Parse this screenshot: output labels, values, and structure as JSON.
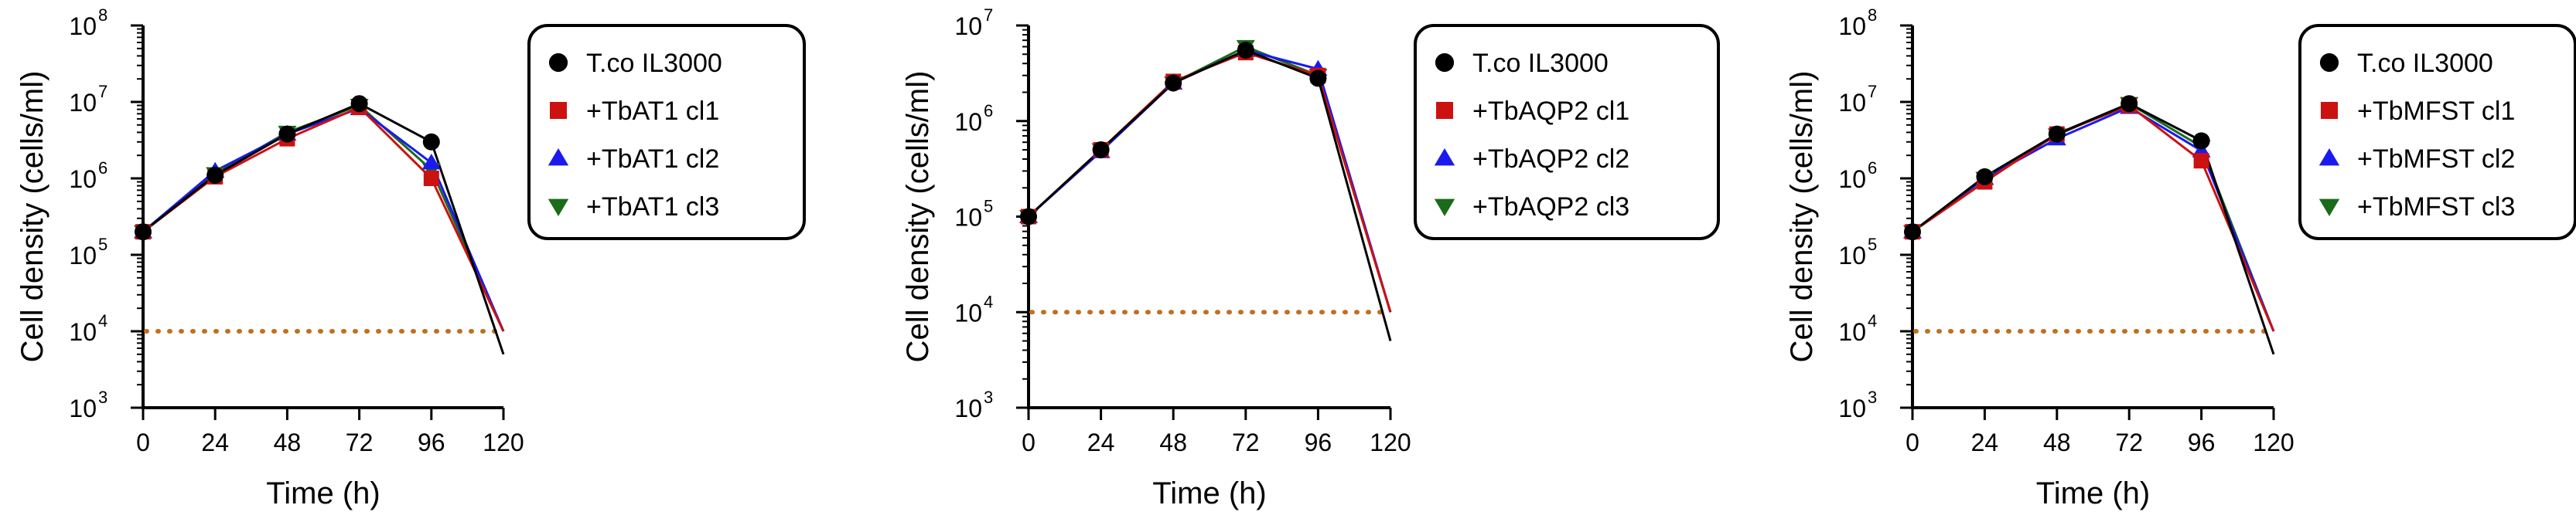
{
  "chart_data": [
    {
      "type": "line",
      "yscale": "log10",
      "xlabel": "Time (h)",
      "ylabel": "Cell density (cells/ml)",
      "xticks": [
        0,
        24,
        48,
        72,
        96,
        120
      ],
      "ytick_exponents": [
        3,
        4,
        5,
        6,
        7,
        8
      ],
      "ytick_base": "10",
      "xlim": [
        0,
        120
      ],
      "ylim": [
        1000,
        100000000
      ],
      "threshold": {
        "value": 10000,
        "style": "dotted",
        "color": "#c07020"
      },
      "series": [
        {
          "name": "T.co IL3000",
          "marker": "circle",
          "color": "#000000",
          "x": [
            0,
            24,
            48,
            72,
            96,
            120
          ],
          "y": [
            200000,
            1100000,
            3800000,
            9500000,
            3000000,
            5000
          ]
        },
        {
          "name": "+TbAT1 cl1",
          "marker": "square",
          "color": "#cc1111",
          "x": [
            0,
            24,
            48,
            72,
            96,
            120
          ],
          "y": [
            200000,
            1050000,
            3300000,
            8500000,
            1000000,
            10000
          ]
        },
        {
          "name": "+TbAT1 cl2",
          "marker": "triangle-up",
          "color": "#1a1aee",
          "x": [
            0,
            24,
            48,
            72,
            96,
            120
          ],
          "y": [
            200000,
            1250000,
            3800000,
            8200000,
            1600000,
            10000
          ]
        },
        {
          "name": "+TbAT1 cl3",
          "marker": "triangle-down",
          "color": "#1a6b1a",
          "x": [
            0,
            24,
            48,
            72,
            96,
            120
          ],
          "y": [
            200000,
            1150000,
            4000000,
            9000000,
            1300000,
            10000
          ]
        }
      ]
    },
    {
      "type": "line",
      "yscale": "log10",
      "xlabel": "Time (h)",
      "ylabel": "Cell density (cells/ml)",
      "xticks": [
        0,
        24,
        48,
        72,
        96,
        120
      ],
      "ytick_exponents": [
        3,
        4,
        5,
        6,
        7
      ],
      "ytick_base": "10",
      "xlim": [
        0,
        120
      ],
      "ylim": [
        1000,
        10000000
      ],
      "threshold": {
        "value": 10000,
        "style": "dotted",
        "color": "#c07020"
      },
      "series": [
        {
          "name": "T.co IL3000",
          "marker": "circle",
          "color": "#000000",
          "x": [
            0,
            24,
            48,
            72,
            96,
            120
          ],
          "y": [
            100000,
            500000,
            2500000,
            5500000,
            2800000,
            5000
          ]
        },
        {
          "name": "+TbAQP2 cl1",
          "marker": "square",
          "color": "#cc1111",
          "x": [
            0,
            24,
            48,
            72,
            96,
            120
          ],
          "y": [
            100000,
            500000,
            2600000,
            5200000,
            3000000,
            10000
          ]
        },
        {
          "name": "+TbAQP2 cl2",
          "marker": "triangle-up",
          "color": "#1a1aee",
          "x": [
            0,
            24,
            48,
            72,
            96,
            120
          ],
          "y": [
            100000,
            480000,
            2500000,
            5500000,
            3500000,
            10000
          ]
        },
        {
          "name": "+TbAQP2 cl3",
          "marker": "triangle-down",
          "color": "#1a6b1a",
          "x": [
            0,
            24,
            48,
            72,
            96,
            120
          ],
          "y": [
            100000,
            500000,
            2500000,
            6000000,
            3000000,
            10000
          ]
        }
      ]
    },
    {
      "type": "line",
      "yscale": "log10",
      "xlabel": "Time (h)",
      "ylabel": "Cell density (cells/ml)",
      "xticks": [
        0,
        24,
        48,
        72,
        96,
        120
      ],
      "ytick_exponents": [
        3,
        4,
        5,
        6,
        7,
        8
      ],
      "ytick_base": "10",
      "xlim": [
        0,
        120
      ],
      "ylim": [
        1000,
        100000000
      ],
      "threshold": {
        "value": 10000,
        "style": "dotted",
        "color": "#c07020"
      },
      "series": [
        {
          "name": "T.co IL3000",
          "marker": "circle",
          "color": "#000000",
          "x": [
            0,
            24,
            48,
            72,
            96,
            120
          ],
          "y": [
            200000,
            1050000,
            3800000,
            9500000,
            3100000,
            5000
          ]
        },
        {
          "name": "+TbMFST cl1",
          "marker": "square",
          "color": "#cc1111",
          "x": [
            0,
            24,
            48,
            72,
            96,
            120
          ],
          "y": [
            200000,
            900000,
            3800000,
            9000000,
            1700000,
            10000
          ]
        },
        {
          "name": "+TbMFST cl2",
          "marker": "triangle-up",
          "color": "#1a1aee",
          "x": [
            0,
            24,
            48,
            72,
            96,
            120
          ],
          "y": [
            200000,
            1000000,
            3300000,
            8500000,
            2300000,
            10000
          ]
        },
        {
          "name": "+TbMFST cl3",
          "marker": "triangle-down",
          "color": "#1a6b1a",
          "x": [
            0,
            24,
            48,
            72,
            96,
            120
          ],
          "y": [
            200000,
            1000000,
            3700000,
            9500000,
            2600000,
            10000
          ]
        }
      ]
    }
  ]
}
